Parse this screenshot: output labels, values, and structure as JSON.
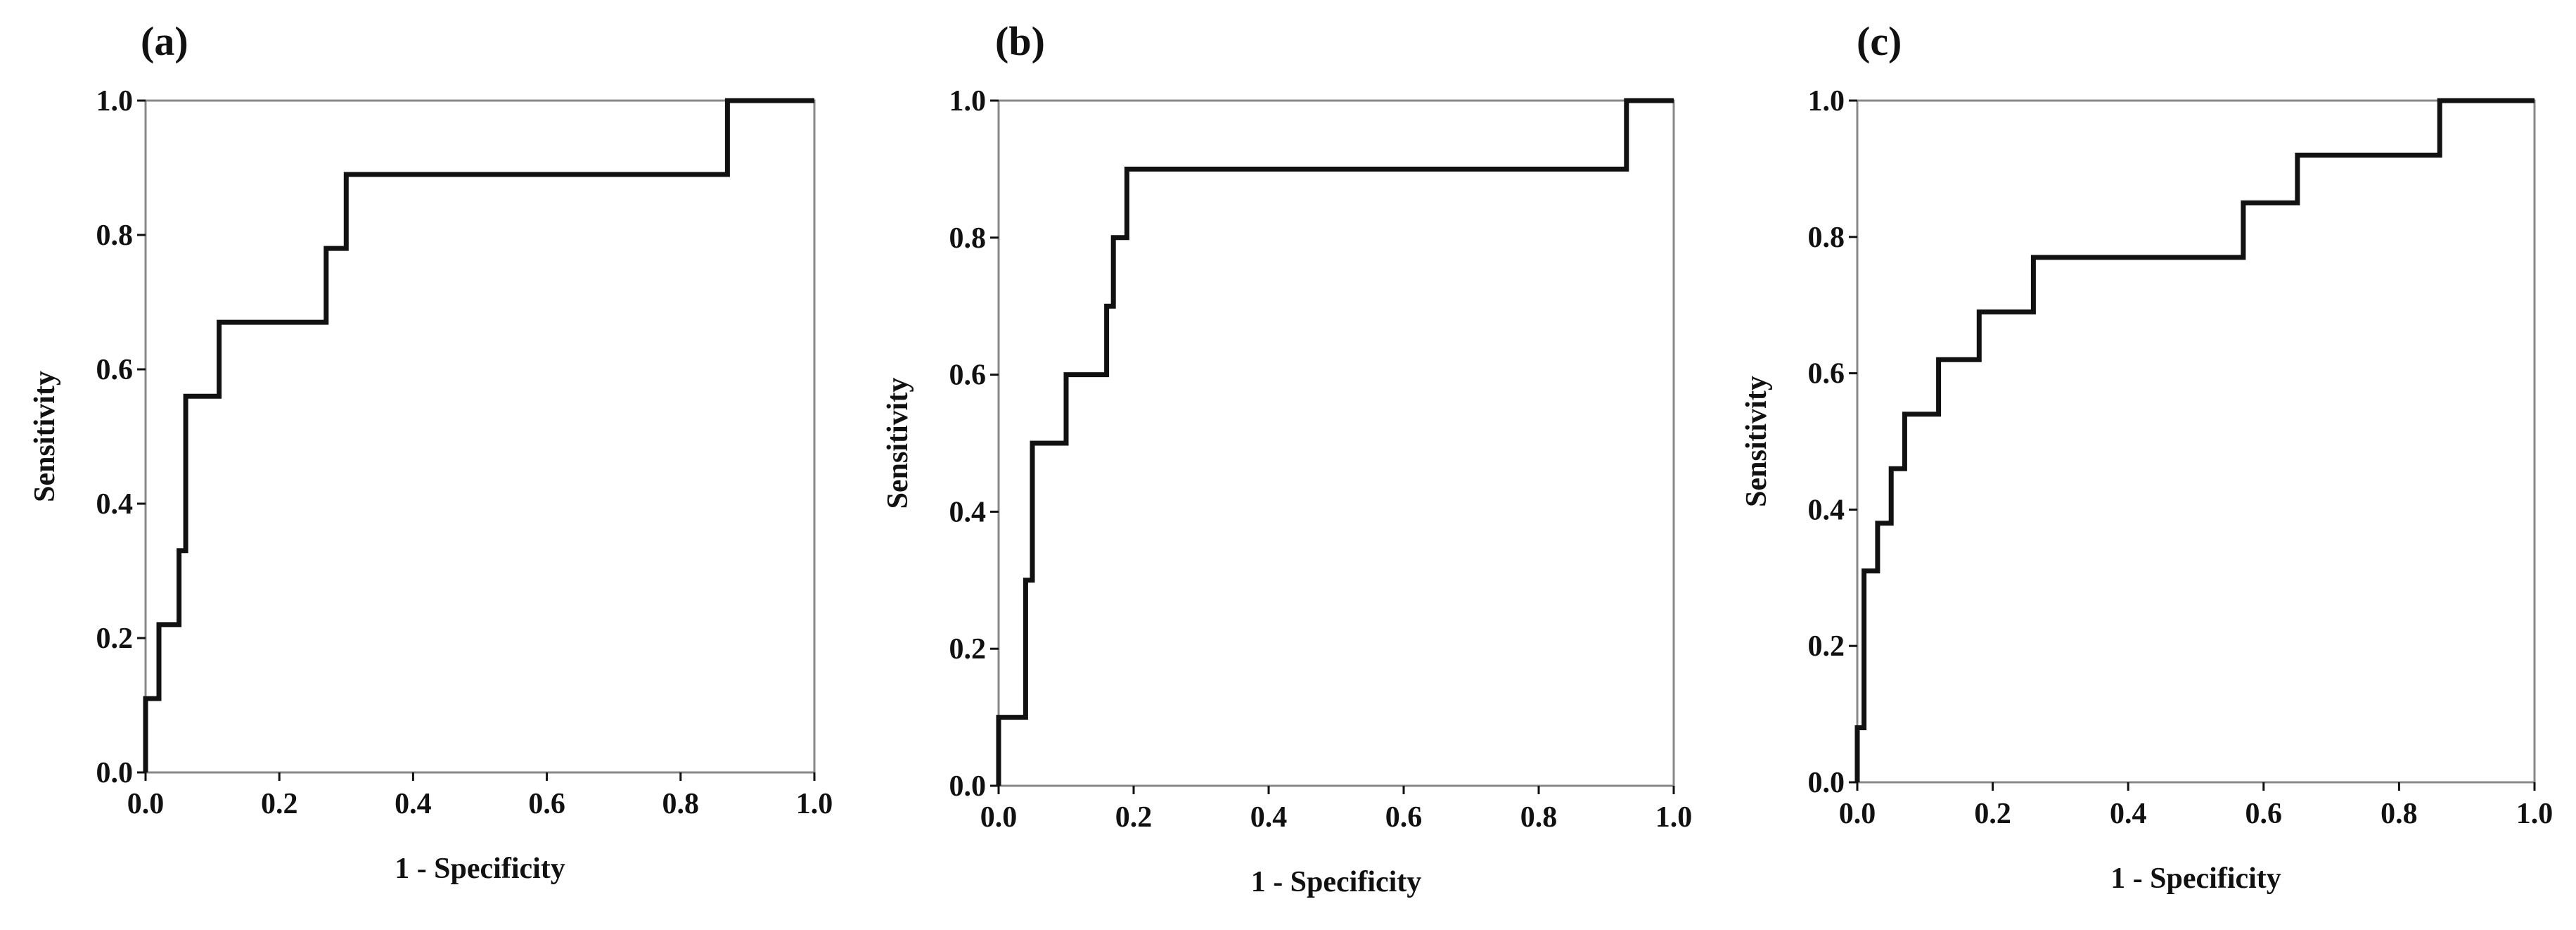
{
  "chart_data": [
    {
      "type": "line",
      "panel_label": "(a)",
      "xlabel": "1 - Specificity",
      "ylabel": "Sensitivity",
      "xlim": [
        0,
        1
      ],
      "ylim": [
        0,
        1
      ],
      "xticks": [
        "0.0",
        "0.2",
        "0.4",
        "0.6",
        "0.8",
        "1.0"
      ],
      "yticks": [
        "0.0",
        "0.2",
        "0.4",
        "0.6",
        "0.8",
        "1.0"
      ],
      "grid": false,
      "series": [
        {
          "x": [
            0.0,
            0.0,
            0.02,
            0.02,
            0.05,
            0.05,
            0.06,
            0.06,
            0.11,
            0.11,
            0.27,
            0.27,
            0.3,
            0.3,
            0.87,
            0.87,
            1.0
          ],
          "y": [
            0.0,
            0.11,
            0.11,
            0.22,
            0.22,
            0.33,
            0.33,
            0.56,
            0.56,
            0.67,
            0.67,
            0.78,
            0.78,
            0.89,
            0.89,
            1.0,
            1.0
          ]
        }
      ]
    },
    {
      "type": "line",
      "panel_label": "(b)",
      "xlabel": "1 - Specificity",
      "ylabel": "Sensitivity",
      "xlim": [
        0,
        1
      ],
      "ylim": [
        0,
        1
      ],
      "xticks": [
        "0.0",
        "0.2",
        "0.4",
        "0.6",
        "0.8",
        "1.0"
      ],
      "yticks": [
        "0.0",
        "0.2",
        "0.4",
        "0.6",
        "0.8",
        "1.0"
      ],
      "grid": false,
      "series": [
        {
          "x": [
            0.0,
            0.0,
            0.04,
            0.04,
            0.05,
            0.05,
            0.1,
            0.1,
            0.16,
            0.16,
            0.17,
            0.17,
            0.19,
            0.19,
            0.93,
            0.93,
            1.0
          ],
          "y": [
            0.0,
            0.1,
            0.1,
            0.3,
            0.3,
            0.5,
            0.5,
            0.6,
            0.6,
            0.7,
            0.7,
            0.8,
            0.8,
            0.9,
            0.9,
            1.0,
            1.0
          ]
        }
      ]
    },
    {
      "type": "line",
      "panel_label": "(c)",
      "xlabel": "1 - Specificity",
      "ylabel": "Sensitivity",
      "xlim": [
        0,
        1
      ],
      "ylim": [
        0,
        1
      ],
      "xticks": [
        "0.0",
        "0.2",
        "0.4",
        "0.6",
        "0.8",
        "1.0"
      ],
      "yticks": [
        "0.0",
        "0.2",
        "0.4",
        "0.6",
        "0.8",
        "1.0"
      ],
      "grid": false,
      "series": [
        {
          "x": [
            0.0,
            0.0,
            0.01,
            0.01,
            0.03,
            0.03,
            0.05,
            0.05,
            0.07,
            0.07,
            0.12,
            0.12,
            0.18,
            0.18,
            0.26,
            0.26,
            0.57,
            0.57,
            0.65,
            0.65,
            0.86,
            0.86,
            1.0
          ],
          "y": [
            0.0,
            0.08,
            0.08,
            0.31,
            0.31,
            0.38,
            0.38,
            0.46,
            0.46,
            0.54,
            0.54,
            0.62,
            0.62,
            0.69,
            0.69,
            0.77,
            0.77,
            0.85,
            0.85,
            0.92,
            0.92,
            1.0,
            1.0
          ]
        }
      ]
    }
  ]
}
